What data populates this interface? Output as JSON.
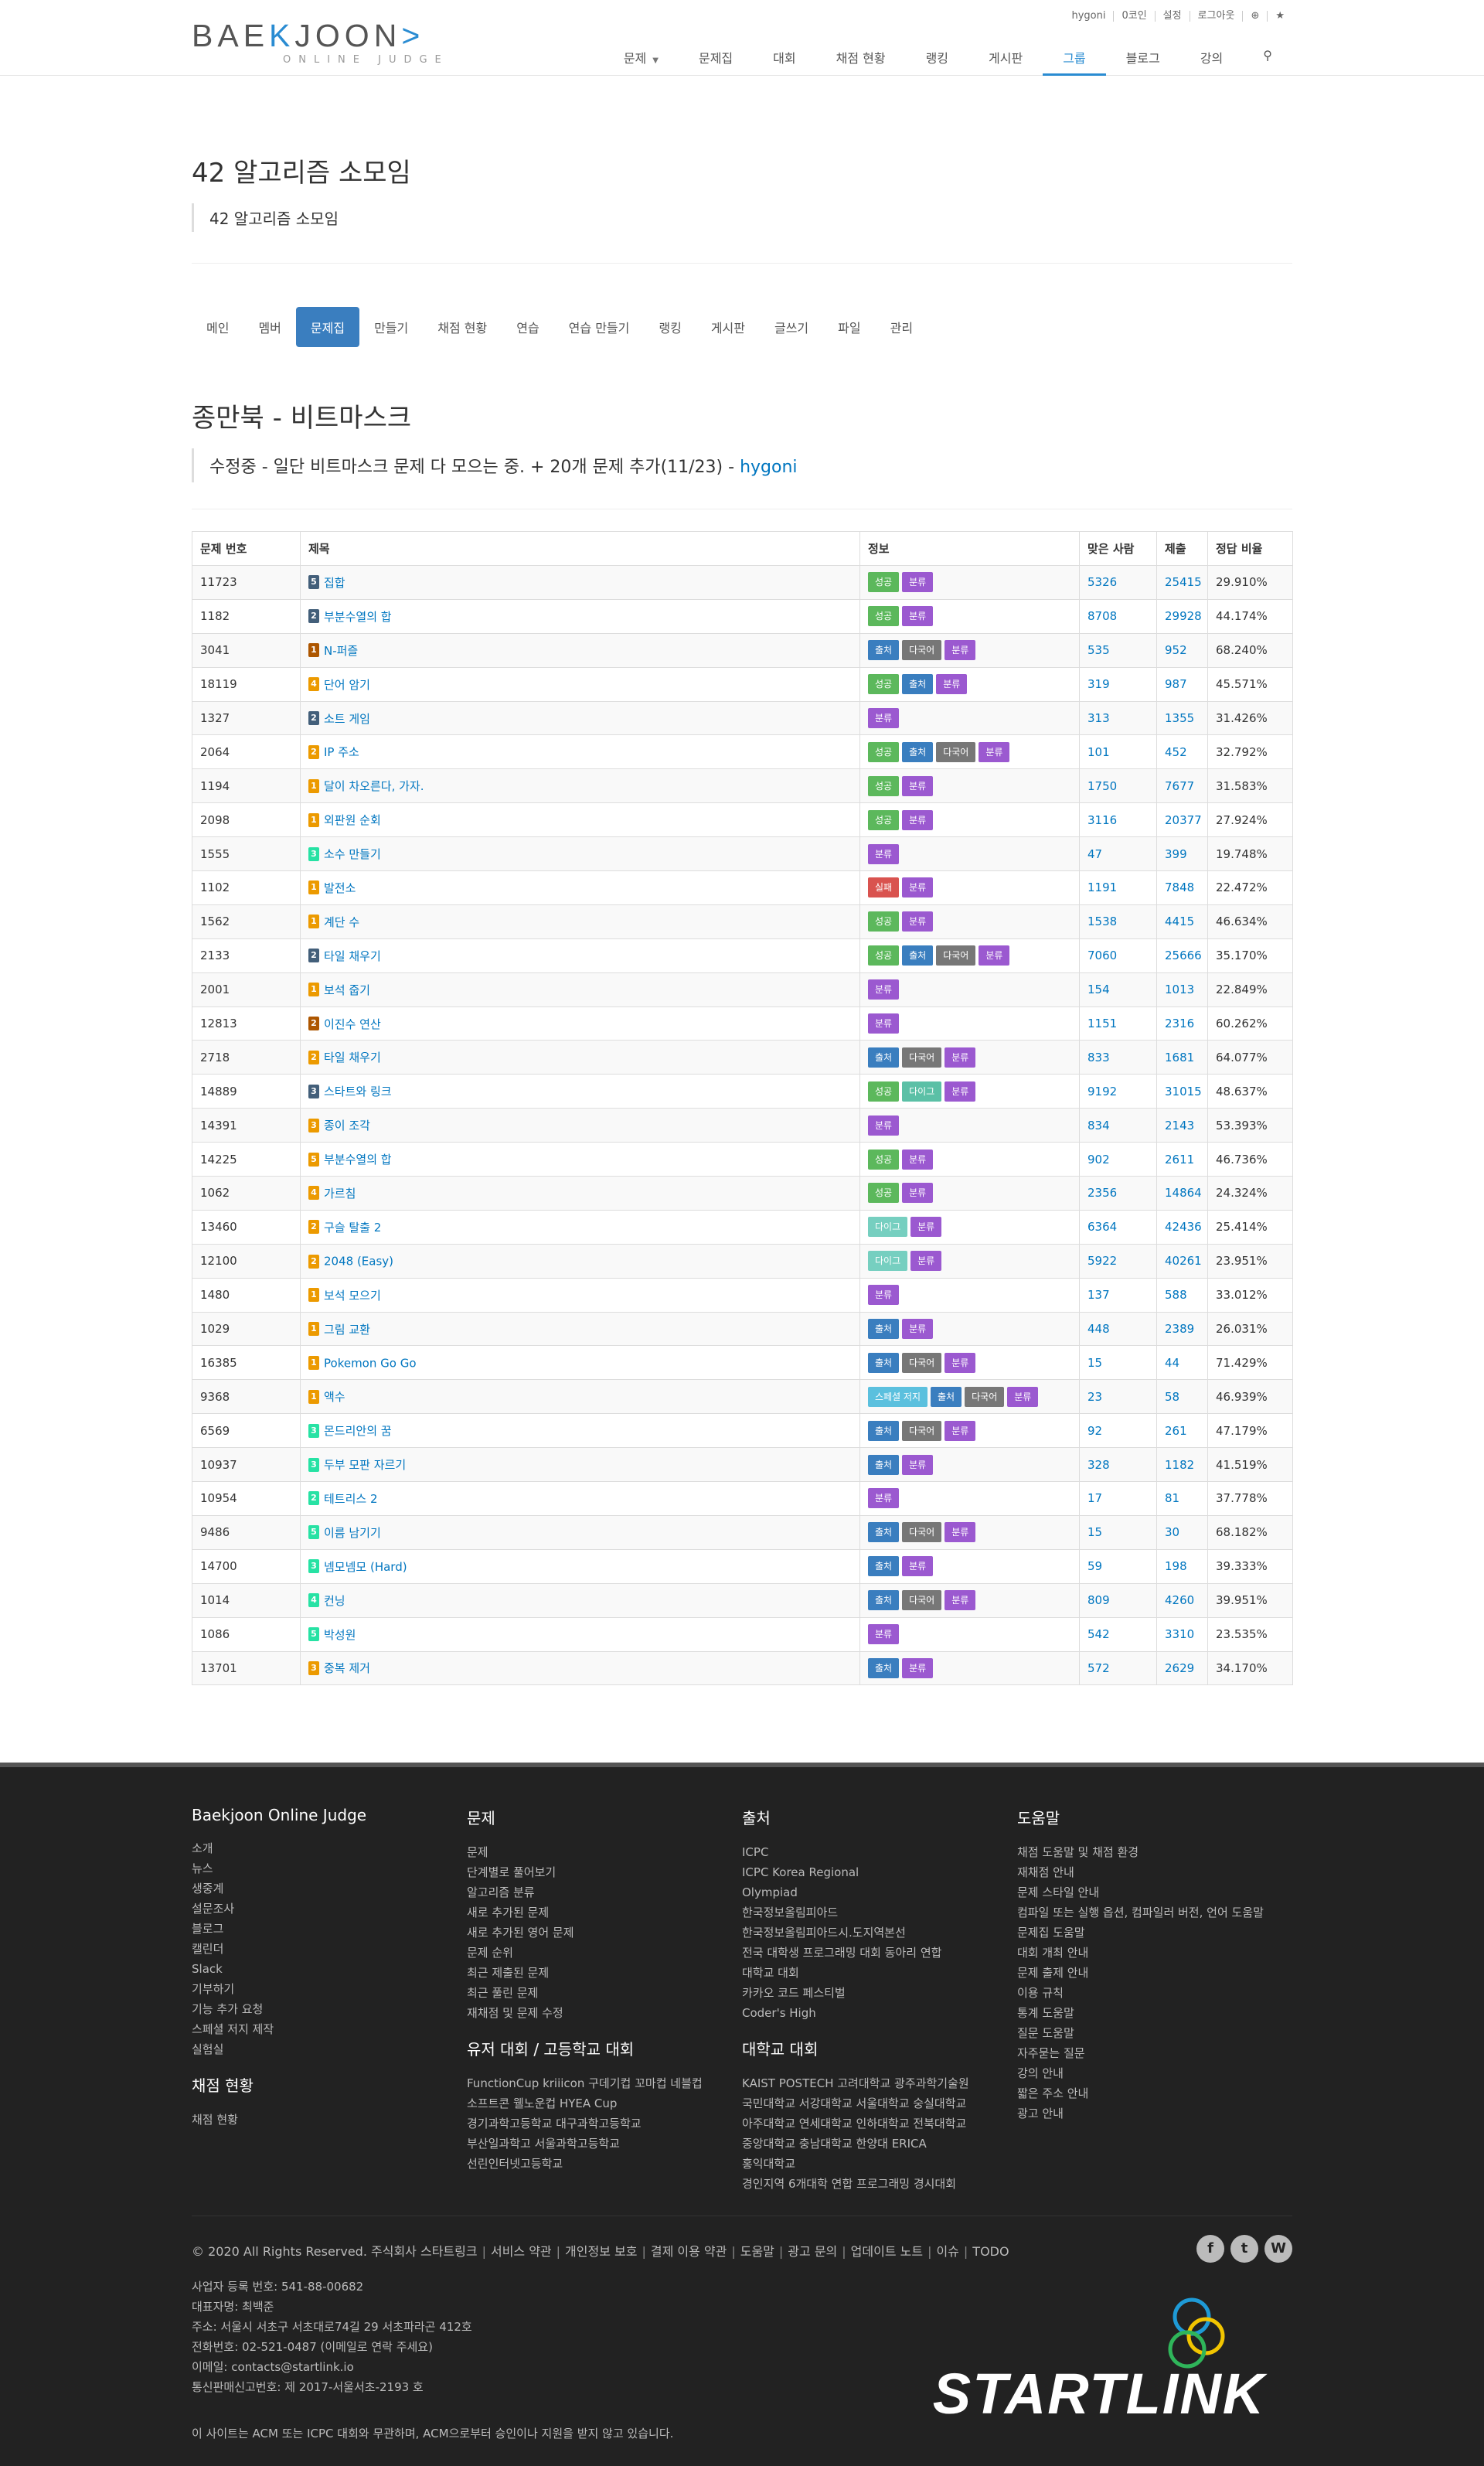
{
  "header": {
    "logo_part1": "BAE",
    "logo_accent": "K",
    "logo_part2": "JOON",
    "logo_bracket": ">",
    "logo_sub": "ONLINE JUDGE",
    "topbar": [
      "hygoni",
      "0코인",
      "설정",
      "로그아웃"
    ],
    "nav": [
      "문제",
      "문제집",
      "대회",
      "채점 현황",
      "랭킹",
      "게시판",
      "그룹",
      "블로그",
      "강의"
    ],
    "nav_active": "그룹"
  },
  "group": {
    "title": "42 알고리즘 소모임",
    "desc": "42 알고리즘 소모임"
  },
  "tabs": [
    "메인",
    "멤버",
    "문제집",
    "만들기",
    "채점 현황",
    "연습",
    "연습 만들기",
    "랭킹",
    "게시판",
    "글쓰기",
    "파일",
    "관리"
  ],
  "tab_active": "문제집",
  "workbook": {
    "title": "종만북 - 비트마스크",
    "desc": "수정중 - 일단 비트마스크 문제 다 모으는 중. + 20개 문제 추가(11/23) - ",
    "author": "hygoni"
  },
  "table": {
    "headers": [
      "문제 번호",
      "제목",
      "정보",
      "맞은 사람",
      "제출",
      "정답 비율"
    ],
    "badge_colors": {
      "성공": "#5cb85c",
      "출처": "#3a7ebf",
      "다국어": "#777777",
      "분류": "#9b59d0",
      "실패": "#d9534f",
      "다이그": "#5bc0a6",
      "다이그2": "#76cfc0",
      "스페셜 저지": "#5bc0de"
    },
    "rows": [
      {
        "id": "11723",
        "tier": "silver",
        "lvl": "5",
        "title": "집합",
        "info": [
          "성공",
          "분류"
        ],
        "ac": "5326",
        "sub": "25415",
        "ratio": "29.910%"
      },
      {
        "id": "1182",
        "tier": "silver",
        "lvl": "2",
        "title": "부분수열의 합",
        "info": [
          "성공",
          "분류"
        ],
        "ac": "8708",
        "sub": "29928",
        "ratio": "44.174%"
      },
      {
        "id": "3041",
        "tier": "bronze",
        "lvl": "1",
        "title": "N-퍼즐",
        "info": [
          "출처",
          "다국어",
          "분류"
        ],
        "ac": "535",
        "sub": "952",
        "ratio": "68.240%"
      },
      {
        "id": "18119",
        "tier": "gold",
        "lvl": "4",
        "title": "단어 암기",
        "info": [
          "성공",
          "출처",
          "분류"
        ],
        "ac": "319",
        "sub": "987",
        "ratio": "45.571%"
      },
      {
        "id": "1327",
        "tier": "silver",
        "lvl": "2",
        "title": "소트 게임",
        "info": [
          "분류"
        ],
        "ac": "313",
        "sub": "1355",
        "ratio": "31.426%"
      },
      {
        "id": "2064",
        "tier": "gold",
        "lvl": "2",
        "title": "IP 주소",
        "info": [
          "성공",
          "출처",
          "다국어",
          "분류"
        ],
        "ac": "101",
        "sub": "452",
        "ratio": "32.792%"
      },
      {
        "id": "1194",
        "tier": "gold",
        "lvl": "1",
        "title": "달이 차오른다, 가자.",
        "info": [
          "성공",
          "분류"
        ],
        "ac": "1750",
        "sub": "7677",
        "ratio": "31.583%"
      },
      {
        "id": "2098",
        "tier": "gold",
        "lvl": "1",
        "title": "외판원 순회",
        "info": [
          "성공",
          "분류"
        ],
        "ac": "3116",
        "sub": "20377",
        "ratio": "27.924%"
      },
      {
        "id": "1555",
        "tier": "plat",
        "lvl": "3",
        "title": "소수 만들기",
        "info": [
          "분류"
        ],
        "ac": "47",
        "sub": "399",
        "ratio": "19.748%"
      },
      {
        "id": "1102",
        "tier": "gold",
        "lvl": "1",
        "title": "발전소",
        "info": [
          "실패",
          "분류"
        ],
        "ac": "1191",
        "sub": "7848",
        "ratio": "22.472%"
      },
      {
        "id": "1562",
        "tier": "gold",
        "lvl": "1",
        "title": "계단 수",
        "info": [
          "성공",
          "분류"
        ],
        "ac": "1538",
        "sub": "4415",
        "ratio": "46.634%"
      },
      {
        "id": "2133",
        "tier": "silver",
        "lvl": "2",
        "title": "타일 채우기",
        "info": [
          "성공",
          "출처",
          "다국어",
          "분류"
        ],
        "ac": "7060",
        "sub": "25666",
        "ratio": "35.170%"
      },
      {
        "id": "2001",
        "tier": "gold",
        "lvl": "1",
        "title": "보석 줍기",
        "info": [
          "분류"
        ],
        "ac": "154",
        "sub": "1013",
        "ratio": "22.849%"
      },
      {
        "id": "12813",
        "tier": "bronze",
        "lvl": "2",
        "title": "이진수 연산",
        "info": [
          "분류"
        ],
        "ac": "1151",
        "sub": "2316",
        "ratio": "60.262%"
      },
      {
        "id": "2718",
        "tier": "gold",
        "lvl": "2",
        "title": "타일 채우기",
        "info": [
          "출처",
          "다국어",
          "분류"
        ],
        "ac": "833",
        "sub": "1681",
        "ratio": "64.077%"
      },
      {
        "id": "14889",
        "tier": "silver",
        "lvl": "3",
        "title": "스타트와 링크",
        "info": [
          "성공",
          "다이그",
          "분류"
        ],
        "ac": "9192",
        "sub": "31015",
        "ratio": "48.637%"
      },
      {
        "id": "14391",
        "tier": "gold",
        "lvl": "3",
        "title": "종이 조각",
        "info": [
          "분류"
        ],
        "ac": "834",
        "sub": "2143",
        "ratio": "53.393%"
      },
      {
        "id": "14225",
        "tier": "gold",
        "lvl": "5",
        "title": "부분수열의 합",
        "info": [
          "성공",
          "분류"
        ],
        "ac": "902",
        "sub": "2611",
        "ratio": "46.736%"
      },
      {
        "id": "1062",
        "tier": "gold",
        "lvl": "4",
        "title": "가르침",
        "info": [
          "성공",
          "분류"
        ],
        "ac": "2356",
        "sub": "14864",
        "ratio": "24.324%"
      },
      {
        "id": "13460",
        "tier": "gold",
        "lvl": "2",
        "title": "구슬 탈출 2",
        "info": [
          "다이그2",
          "분류"
        ],
        "ac": "6364",
        "sub": "42436",
        "ratio": "25.414%"
      },
      {
        "id": "12100",
        "tier": "gold",
        "lvl": "2",
        "title": "2048 (Easy)",
        "info": [
          "다이그2",
          "분류"
        ],
        "ac": "5922",
        "sub": "40261",
        "ratio": "23.951%"
      },
      {
        "id": "1480",
        "tier": "gold",
        "lvl": "1",
        "title": "보석 모으기",
        "info": [
          "분류"
        ],
        "ac": "137",
        "sub": "588",
        "ratio": "33.012%"
      },
      {
        "id": "1029",
        "tier": "gold",
        "lvl": "1",
        "title": "그림 교환",
        "info": [
          "출처",
          "분류"
        ],
        "ac": "448",
        "sub": "2389",
        "ratio": "26.031%"
      },
      {
        "id": "16385",
        "tier": "gold",
        "lvl": "1",
        "title": "Pokemon Go Go",
        "info": [
          "출처",
          "다국어",
          "분류"
        ],
        "ac": "15",
        "sub": "44",
        "ratio": "71.429%"
      },
      {
        "id": "9368",
        "tier": "gold",
        "lvl": "1",
        "title": "액수",
        "info": [
          "스페셜 저지",
          "출처",
          "다국어",
          "분류"
        ],
        "ac": "23",
        "sub": "58",
        "ratio": "46.939%"
      },
      {
        "id": "6569",
        "tier": "plat",
        "lvl": "3",
        "title": "몬드리안의 꿈",
        "info": [
          "출처",
          "다국어",
          "분류"
        ],
        "ac": "92",
        "sub": "261",
        "ratio": "47.179%"
      },
      {
        "id": "10937",
        "tier": "plat",
        "lvl": "3",
        "title": "두부 모판 자르기",
        "info": [
          "출처",
          "분류"
        ],
        "ac": "328",
        "sub": "1182",
        "ratio": "41.519%"
      },
      {
        "id": "10954",
        "tier": "plat",
        "lvl": "2",
        "title": "테트리스 2",
        "info": [
          "분류"
        ],
        "ac": "17",
        "sub": "81",
        "ratio": "37.778%"
      },
      {
        "id": "9486",
        "tier": "plat",
        "lvl": "5",
        "title": "이름 남기기",
        "info": [
          "출처",
          "다국어",
          "분류"
        ],
        "ac": "15",
        "sub": "30",
        "ratio": "68.182%"
      },
      {
        "id": "14700",
        "tier": "plat",
        "lvl": "3",
        "title": "넴모넴모 (Hard)",
        "info": [
          "출처",
          "분류"
        ],
        "ac": "59",
        "sub": "198",
        "ratio": "39.333%"
      },
      {
        "id": "1014",
        "tier": "plat",
        "lvl": "4",
        "title": "컨닝",
        "info": [
          "출처",
          "다국어",
          "분류"
        ],
        "ac": "809",
        "sub": "4260",
        "ratio": "39.951%"
      },
      {
        "id": "1086",
        "tier": "plat",
        "lvl": "5",
        "title": "박성원",
        "info": [
          "분류"
        ],
        "ac": "542",
        "sub": "3310",
        "ratio": "23.535%"
      },
      {
        "id": "13701",
        "tier": "gold",
        "lvl": "3",
        "title": "중복 제거",
        "info": [
          "출처",
          "분류"
        ],
        "ac": "572",
        "sub": "2629",
        "ratio": "34.170%"
      }
    ]
  },
  "footer": {
    "cols": [
      {
        "title": "Baekjoon Online Judge",
        "items": [
          "소개",
          "뉴스",
          "생중계",
          "설문조사",
          "블로그",
          "캘린더",
          "Slack",
          "기부하기",
          "기능 추가 요청",
          "스페셜 저지 제작",
          "실험실"
        ],
        "title2": "채점 현황",
        "items2": [
          "채점 현황"
        ]
      },
      {
        "title": "문제",
        "items": [
          "문제",
          "단계별로 풀어보기",
          "알고리즘 분류",
          "새로 추가된 문제",
          "새로 추가된 영어 문제",
          "문제 순위",
          "최근 제출된 문제",
          "최근 풀린 문제",
          "재채점 및 문제 수정"
        ],
        "title2": "유저 대회 / 고등학교 대회",
        "items2": [
          "FunctionCup kriiicon 구데기컵 꼬마컵 네블컵",
          "소프트콘 웰노운컵 HYEA Cup",
          "경기과학고등학교 대구과학고등학교",
          "부산일과학고 서울과학고등학교",
          "선린인터넷고등학교"
        ]
      },
      {
        "title": "출처",
        "items": [
          "ICPC",
          "ICPC Korea Regional",
          "Olympiad",
          "한국정보올림피아드",
          "한국정보올림피아드시.도지역본선",
          "전국 대학생 프로그래밍 대회 동아리 연합",
          "대학교 대회",
          "카카오 코드 페스티벌",
          "Coder's High"
        ],
        "title2": "대학교 대회",
        "items2": [
          "KAIST POSTECH 고려대학교 광주과학기술원",
          "국민대학교 서강대학교 서울대학교 숭실대학교",
          "아주대학교 연세대학교 인하대학교 전북대학교",
          "중앙대학교 충남대학교 한양대 ERICA",
          "홍익대학교",
          "경인지역 6개대학 연합 프로그래밍 경시대회"
        ]
      },
      {
        "title": "도움말",
        "items": [
          "채점 도움말 및 채점 환경",
          "재채점 안내",
          "문제 스타일 안내",
          "컴파일 또는 실행 옵션, 컴파일러 버전, 언어 도움말",
          "문제집 도움말",
          "대회 개최 안내",
          "문제 출제 안내",
          "이용 규칙",
          "통계 도움말",
          "질문 도움말",
          "자주묻는 질문",
          "강의 안내",
          "짧은 주소 안내",
          "광고 안내"
        ],
        "title2": "",
        "items2": []
      }
    ],
    "copyright": "© 2020 All Rights Reserved. 주식회사 스타트링크",
    "links": [
      "서비스 약관",
      "개인정보 보호",
      "결제 이용 약관",
      "도움말",
      "광고 문의",
      "업데이트 노트",
      "이슈",
      "TODO"
    ],
    "biz": [
      "사업자 등록 번호: 541-88-00682",
      "대표자명: 최백준",
      "주소: 서울시 서초구 서초대로74길 29 서초파라곤 412호",
      "전화번호: 02-521-0487 (이메일로 연락 주세요)",
      "이메일: contacts@startlink.io",
      "통신판매신고번호: 제 2017-서울서초-2193 호"
    ],
    "notice": "이 사이트는 ACM 또는 ICPC 대회와 무관하며, ACM으로부터 승인이나 지원을 받지 않고 있습니다.",
    "social": [
      "f",
      "t",
      "W"
    ],
    "brand": "STARTLINK"
  }
}
